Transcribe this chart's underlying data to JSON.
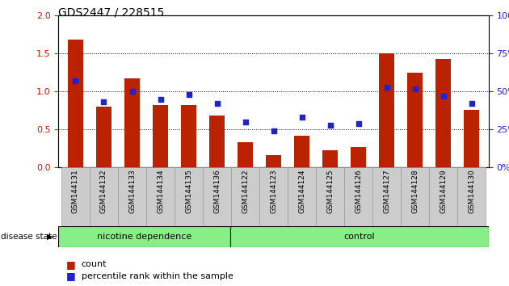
{
  "title": "GDS2447 / 228515",
  "categories": [
    "GSM144131",
    "GSM144132",
    "GSM144133",
    "GSM144134",
    "GSM144135",
    "GSM144136",
    "GSM144122",
    "GSM144123",
    "GSM144124",
    "GSM144125",
    "GSM144126",
    "GSM144127",
    "GSM144128",
    "GSM144129",
    "GSM144130"
  ],
  "counts": [
    1.68,
    0.8,
    1.17,
    0.82,
    0.82,
    0.68,
    0.33,
    0.16,
    0.42,
    0.23,
    0.27,
    1.5,
    1.25,
    1.43,
    0.76
  ],
  "percentiles": [
    57,
    43,
    50,
    45,
    48,
    42,
    30,
    24,
    33,
    28,
    29,
    53,
    52,
    47,
    42
  ],
  "ylim_left": [
    0,
    2
  ],
  "ylim_right": [
    0,
    100
  ],
  "yticks_left": [
    0,
    0.5,
    1.0,
    1.5,
    2.0
  ],
  "yticks_right": [
    0,
    25,
    50,
    75,
    100
  ],
  "bar_color": "#bb2200",
  "dot_color": "#2222cc",
  "group1_label": "nicotine dependence",
  "group2_label": "control",
  "group1_count": 6,
  "group2_count": 9,
  "group_color": "#88ee88",
  "disease_state_label": "disease state",
  "legend_count_label": "count",
  "legend_pct_label": "percentile rank within the sample",
  "background_color": "#ffffff",
  "tick_label_bg": "#cccccc"
}
